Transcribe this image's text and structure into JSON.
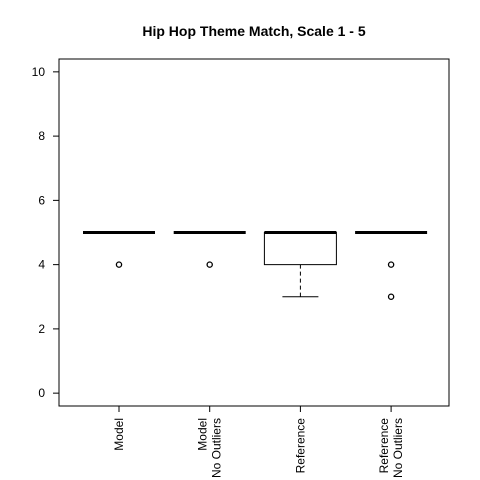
{
  "chart_data": {
    "type": "box",
    "title": "Hip Hop Theme Match, Scale 1 - 5",
    "xlabel": "",
    "ylabel": "",
    "ylim": [
      -0.4,
      10.4
    ],
    "yticks": [
      0,
      2,
      4,
      6,
      8,
      10
    ],
    "grid": false,
    "categories": [
      {
        "lines": [
          "Model"
        ]
      },
      {
        "lines": [
          "Model",
          "No Outliers"
        ]
      },
      {
        "lines": [
          "Reference"
        ]
      },
      {
        "lines": [
          "Reference",
          "No Outliers"
        ]
      }
    ],
    "boxes": [
      {
        "min": 5,
        "q1": 5,
        "median": 5,
        "q3": 5,
        "max": 5,
        "outliers": [
          4
        ]
      },
      {
        "min": 5,
        "q1": 5,
        "median": 5,
        "q3": 5,
        "max": 5,
        "outliers": [
          4
        ]
      },
      {
        "min": 3,
        "q1": 4,
        "median": 5,
        "q3": 5,
        "max": 5,
        "outliers": []
      },
      {
        "min": 5,
        "q1": 5,
        "median": 5,
        "q3": 5,
        "max": 5,
        "outliers": [
          4,
          3
        ]
      }
    ]
  }
}
